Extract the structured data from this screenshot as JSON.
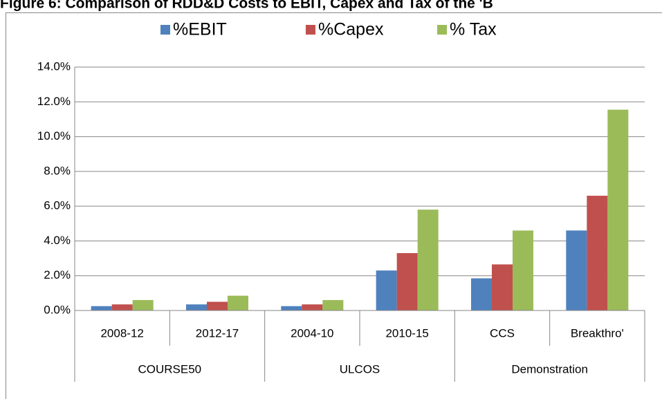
{
  "chart_data": {
    "type": "bar",
    "title": "Figure 6: Comparison of RDD&D Costs to EBIT, Capex and Tax of the 'B",
    "categories": [
      "2008-12",
      "2012-17",
      "2004-10",
      "2010-15",
      "CCS",
      "Breakthro'"
    ],
    "groups": [
      "COURSE50",
      "ULCOS",
      "Demonstration"
    ],
    "series": [
      {
        "name": "%EBIT",
        "color": "#4f81bd",
        "values": [
          0.25,
          0.35,
          0.25,
          2.3,
          1.85,
          4.6
        ]
      },
      {
        "name": "%Capex",
        "color": "#c0504d",
        "values": [
          0.35,
          0.5,
          0.35,
          3.3,
          2.65,
          6.6
        ]
      },
      {
        "name": "% Tax",
        "color": "#9bbb59",
        "values": [
          0.6,
          0.85,
          0.6,
          5.8,
          4.6,
          11.55
        ]
      }
    ],
    "ylim": [
      0,
      14
    ],
    "yticks": [
      {
        "value": 0,
        "label": "0.0%"
      },
      {
        "value": 2,
        "label": "2.0%"
      },
      {
        "value": 4,
        "label": "4.0%"
      },
      {
        "value": 6,
        "label": "6.0%"
      },
      {
        "value": 8,
        "label": "8.0%"
      },
      {
        "value": 10,
        "label": "10.0%"
      },
      {
        "value": 12,
        "label": "12.0%"
      },
      {
        "value": 14,
        "label": "14.0%"
      }
    ],
    "grid": true,
    "legend": "top"
  }
}
